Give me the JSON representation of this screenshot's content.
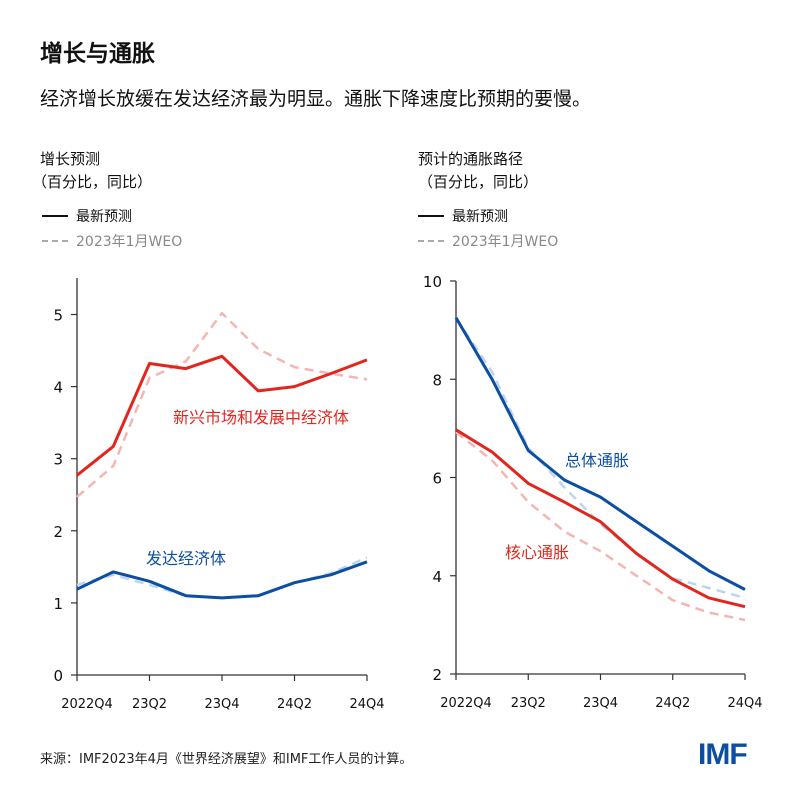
{
  "title": "增长与通胀",
  "subtitle": "经济增长放缓在发达经济最为明显。通胀下降速度比预期的要慢。",
  "legend": {
    "latest": "最新预测",
    "jan": "2023年1月WEO"
  },
  "source": "来源：IMF2023年4月《世界经济展望》和IMF工作人员的计算。",
  "logo": "IMF",
  "colors": {
    "red": "#e3261d",
    "red_light": "#f5b5b1",
    "blue": "#0b4ea2",
    "blue_light": "#bcd5ee"
  },
  "chart_data": [
    {
      "type": "line",
      "title": "增长预测",
      "subtitle": "（百分比，同比）",
      "x": [
        "2022Q4",
        "23Q1",
        "23Q2",
        "23Q3",
        "23Q4",
        "24Q1",
        "24Q2",
        "24Q3",
        "24Q4"
      ],
      "x_tick_labels": [
        "2022Q4",
        "23Q2",
        "23Q4",
        "24Q2",
        "24Q4"
      ],
      "ylim": [
        0,
        5
      ],
      "y_ticks": [
        0,
        1,
        2,
        3,
        4,
        5
      ],
      "grid": false,
      "series": [
        {
          "name": "新兴市场和发展中经济体",
          "vintage": "最新预测",
          "color": "#e3261d",
          "dashed": false,
          "values": [
            2.77,
            3.17,
            4.32,
            4.25,
            4.42,
            3.94,
            4.0,
            4.18,
            4.37
          ]
        },
        {
          "name": "新兴市场和发展中经济体",
          "vintage": "2023年1月WEO",
          "color": "#f5b5b1",
          "dashed": true,
          "values": [
            2.47,
            2.9,
            4.12,
            4.35,
            5.02,
            4.52,
            4.27,
            4.18,
            4.1
          ]
        },
        {
          "name": "发达经济体",
          "vintage": "最新预测",
          "color": "#0b4ea2",
          "dashed": false,
          "values": [
            1.19,
            1.43,
            1.3,
            1.1,
            1.07,
            1.1,
            1.28,
            1.39,
            1.57
          ]
        },
        {
          "name": "发达经济体",
          "vintage": "2023年1月WEO",
          "color": "#bcd5ee",
          "dashed": true,
          "values": [
            1.25,
            1.39,
            1.25,
            1.1,
            1.07,
            1.1,
            1.28,
            1.41,
            1.63
          ]
        }
      ],
      "labels": [
        {
          "text": "新兴市场和发展中经济体",
          "color": "#e3261d"
        },
        {
          "text": "发达经济体",
          "color": "#0b4ea2"
        }
      ]
    },
    {
      "type": "line",
      "title": "预计的通胀路径",
      "subtitle": "（百分比，同比）",
      "x": [
        "2022Q4",
        "23Q1",
        "23Q2",
        "23Q3",
        "23Q4",
        "24Q1",
        "24Q2",
        "24Q3",
        "24Q4"
      ],
      "x_tick_labels": [
        "2022Q4",
        "23Q2",
        "23Q4",
        "24Q2",
        "24Q4"
      ],
      "ylim": [
        2,
        10
      ],
      "y_ticks": [
        2,
        4,
        6,
        8,
        10
      ],
      "grid": false,
      "series": [
        {
          "name": "总体通胀",
          "vintage": "2023年1月WEO",
          "color": "#bcd5ee",
          "dashed": true,
          "values": [
            9.25,
            8.15,
            6.6,
            5.8,
            5.05,
            4.45,
            3.95,
            3.75,
            3.55
          ]
        },
        {
          "name": "核心通胀",
          "vintage": "2023年1月WEO",
          "color": "#f5b5b1",
          "dashed": true,
          "values": [
            6.92,
            6.35,
            5.5,
            4.9,
            4.5,
            4.0,
            3.5,
            3.25,
            3.1
          ]
        },
        {
          "name": "总体通胀",
          "vintage": "最新预测",
          "color": "#0b4ea2",
          "dashed": false,
          "values": [
            9.25,
            8.0,
            6.55,
            5.95,
            5.6,
            5.1,
            4.6,
            4.1,
            3.72
          ]
        },
        {
          "name": "核心通胀",
          "vintage": "最新预测",
          "color": "#e3261d",
          "dashed": false,
          "values": [
            6.97,
            6.52,
            5.88,
            5.5,
            5.1,
            4.45,
            3.93,
            3.55,
            3.37
          ]
        }
      ],
      "labels": [
        {
          "text": "总体通胀",
          "color": "#0b4ea2"
        },
        {
          "text": "核心通胀",
          "color": "#e3261d"
        }
      ]
    }
  ]
}
